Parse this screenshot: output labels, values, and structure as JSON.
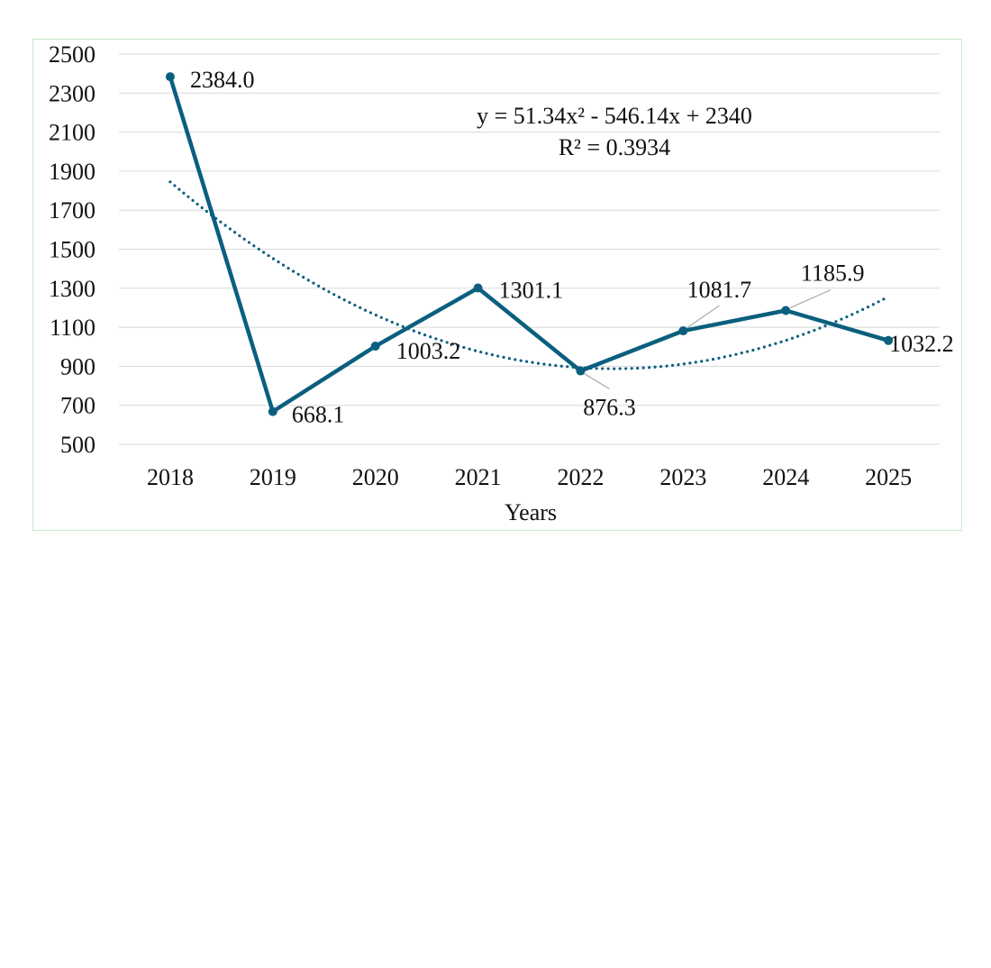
{
  "chart_data": {
    "type": "line",
    "title": "",
    "xlabel": "Years",
    "ylabel": "",
    "categories": [
      "2018",
      "2019",
      "2020",
      "2021",
      "2022",
      "2023",
      "2024",
      "2025"
    ],
    "series": [
      {
        "name": "Value",
        "values": [
          2384.0,
          668.1,
          1003.2,
          1301.1,
          876.3,
          1081.7,
          1185.9,
          1032.2
        ],
        "labels": [
          "2384.0",
          "668.1",
          "1003.2",
          "1301.1",
          "876.3",
          "1081.7",
          "1185.9",
          "1032.2"
        ],
        "color": "#0b5f7e"
      }
    ],
    "trendline": {
      "type": "polynomial",
      "order": 2,
      "coefficients": [
        51.34,
        -546.14,
        2340
      ],
      "equation": "y = 51.34x² - 546.14x + 2340",
      "r_squared": "R² = 0.3934",
      "style": "dotted",
      "color": "#0b5f7e"
    },
    "ylim": [
      500,
      2500
    ],
    "yticks": [
      "500",
      "700",
      "900",
      "1100",
      "1300",
      "1500",
      "1700",
      "1900",
      "2100",
      "2300",
      "2500"
    ],
    "grid": true,
    "legend": "none",
    "gridline_color": "#d9d9d9",
    "frame_color": "#c9e9cc"
  }
}
